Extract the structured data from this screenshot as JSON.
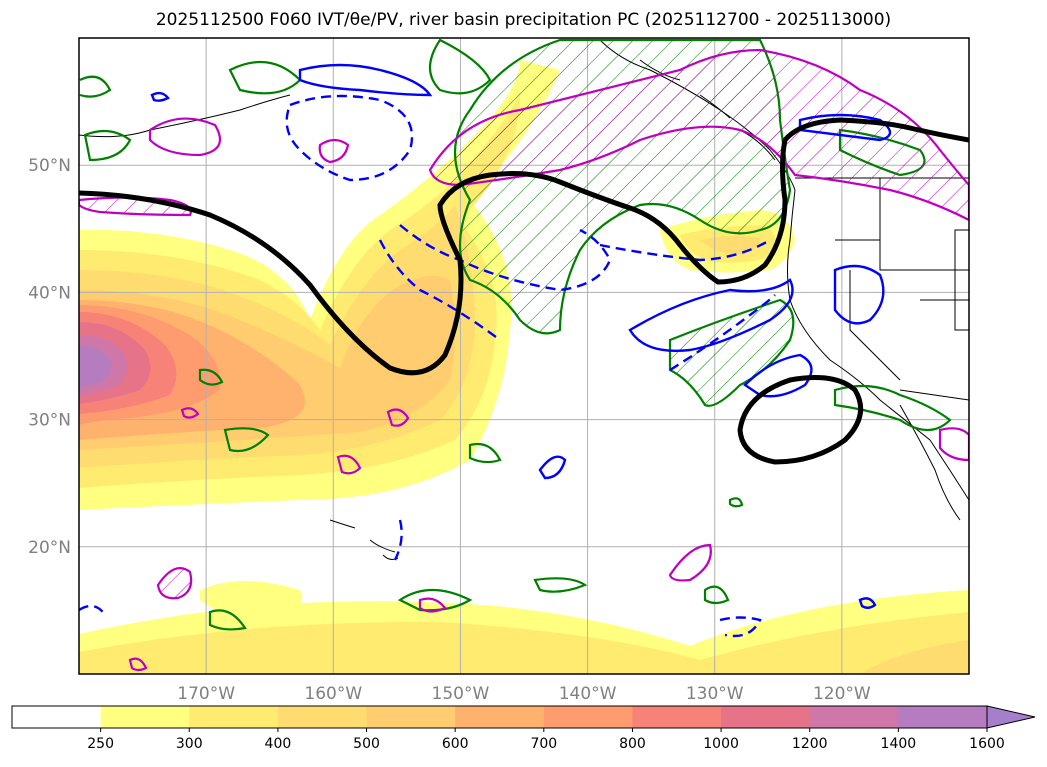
{
  "title": "2025112500 F060 IVT/θe/PV, river basin precipitation PC (2025112700 - 2025113000)",
  "map": {
    "extent": {
      "lon_min": -180,
      "lon_max": -110,
      "lat_min": 10,
      "lat_max": 60
    },
    "lat_ticks": [
      20,
      30,
      40,
      50
    ],
    "lat_labels": [
      "20°N",
      "30°N",
      "40°N",
      "50°N"
    ],
    "lon_ticks": [
      -170,
      -160,
      -150,
      -140,
      -130,
      -120
    ],
    "lon_labels": [
      "170°W",
      "160°W",
      "150°W",
      "140°W",
      "130°W",
      "120°W"
    ],
    "layers": {
      "ivt_fill": "IVT shading",
      "pv_contour": "PV contour (black)",
      "theta_e_positive": "θe contour (blue solid)",
      "theta_e_negative": "θe contour (blue dashed)",
      "precip_pc_green": "precipitation PC contour (green, hatched)",
      "precip_pc_magenta": "precipitation PC contour (magenta, hatched)"
    }
  },
  "colorbar": {
    "bounds": [
      250,
      300,
      400,
      500,
      600,
      700,
      800,
      1000,
      1200,
      1400,
      1600
    ],
    "labels": [
      "250",
      "300",
      "400",
      "500",
      "600",
      "700",
      "800",
      "1000",
      "1200",
      "1400",
      "1600"
    ],
    "colors": [
      "#ffffff",
      "#ffff80",
      "#ffeb70",
      "#ffdc70",
      "#ffcd6f",
      "#ffb26e",
      "#ff9c6f",
      "#f68278",
      "#e77388",
      "#cf77a8",
      "#b57dc0",
      "#a57fcb"
    ],
    "extend": "max"
  },
  "colors": {
    "pv": "#000000",
    "theta_e": "#0000ff",
    "green": "#008000",
    "magenta": "#c000c0",
    "grid": "#b0b0b0",
    "tick_label": "#808080"
  }
}
